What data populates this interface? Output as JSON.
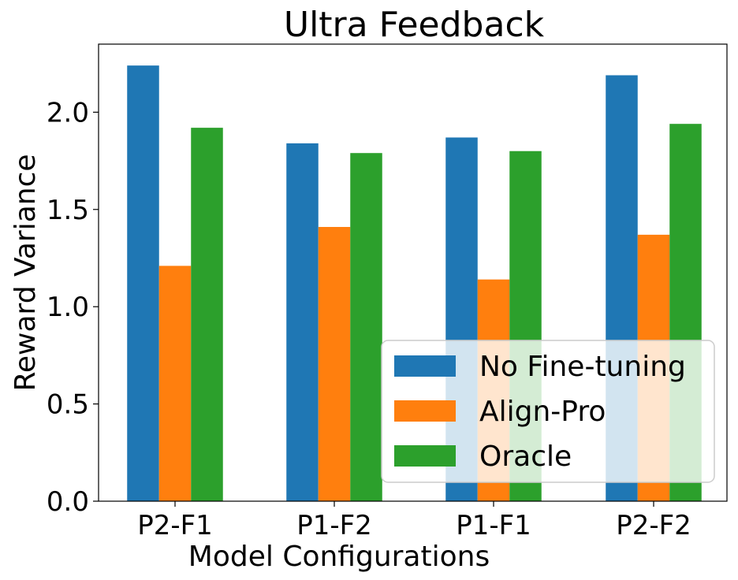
{
  "chart_data": {
    "type": "bar",
    "title": "Ultra Feedback",
    "xlabel": "Model Configurations",
    "ylabel": "Reward Variance",
    "categories": [
      "P2-F1",
      "P1-F2",
      "P1-F1",
      "P2-F2"
    ],
    "ylim": [
      0,
      2.35
    ],
    "yticks": [
      0.0,
      0.5,
      1.0,
      1.5,
      2.0
    ],
    "ytick_labels": [
      "0.0",
      "0.5",
      "1.0",
      "1.5",
      "2.0"
    ],
    "legend_position": "lower-right",
    "series": [
      {
        "name": "No Fine-tuning",
        "color": "#1f77b4",
        "values": [
          2.24,
          1.84,
          1.87,
          2.19
        ]
      },
      {
        "name": "Align-Pro",
        "color": "#ff7f0e",
        "values": [
          1.21,
          1.41,
          1.14,
          1.37
        ]
      },
      {
        "name": "Oracle",
        "color": "#2ca02c",
        "values": [
          1.92,
          1.79,
          1.8,
          1.94
        ]
      }
    ]
  }
}
